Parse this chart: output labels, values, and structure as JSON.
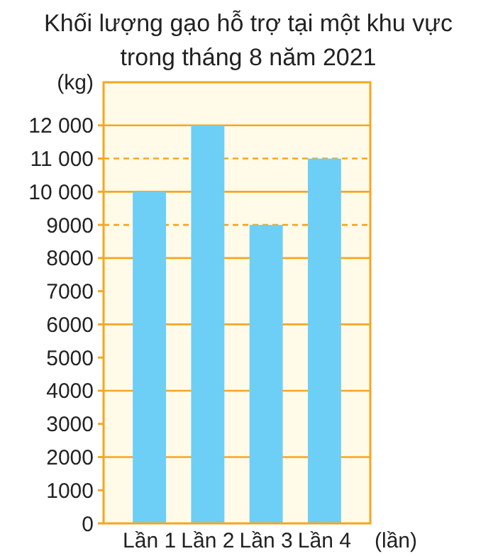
{
  "chart_data": {
    "type": "bar",
    "title": "Khối lượng gạo hỗ trợ tại một khu vực\ntrong tháng 8 năm 2021",
    "ylabel": "(kg)",
    "xlabel": "(lần)",
    "categories": [
      "Lần 1",
      "Lần 2",
      "Lần 3",
      "Lần 4"
    ],
    "values": [
      10000,
      12000,
      9000,
      11000
    ],
    "color": "#6dcff6",
    "ylim": [
      0,
      13300
    ],
    "yticks": [
      0,
      1000,
      2000,
      3000,
      4000,
      5000,
      6000,
      7000,
      8000,
      9000,
      {
        "value": 10000,
        "label": "10 000"
      },
      {
        "value": 11000,
        "label": "11 000"
      },
      {
        "value": 12000,
        "label": "12 000"
      }
    ],
    "grid": false,
    "ref_lines": [
      {
        "axis": "y",
        "value": 2000,
        "color": "#f5a623",
        "line_style": "solid"
      },
      {
        "axis": "y",
        "value": 4000,
        "color": "#f5a623",
        "line_style": "solid"
      },
      {
        "axis": "y",
        "value": 6000,
        "color": "#f5a623",
        "line_style": "solid"
      },
      {
        "axis": "y",
        "value": 8000,
        "color": "#f5a623",
        "line_style": "solid"
      },
      {
        "axis": "y",
        "value": 9000,
        "color": "#f5a623",
        "line_style": "dashed"
      },
      {
        "axis": "y",
        "value": 10000,
        "color": "#f5a623",
        "line_style": "solid"
      },
      {
        "axis": "y",
        "value": 11000,
        "color": "#f5a623",
        "line_style": "dashed"
      },
      {
        "axis": "y",
        "value": 12000,
        "color": "#f5a623",
        "line_style": "solid"
      }
    ]
  }
}
